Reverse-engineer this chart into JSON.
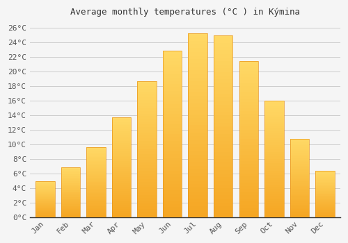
{
  "title": "Average monthly temperatures (°C ) in Kýmina",
  "months": [
    "Jan",
    "Feb",
    "Mar",
    "Apr",
    "May",
    "Jun",
    "Jul",
    "Aug",
    "Sep",
    "Oct",
    "Nov",
    "Dec"
  ],
  "values": [
    4.9,
    6.8,
    9.6,
    13.7,
    18.7,
    22.8,
    25.2,
    24.9,
    21.4,
    16.0,
    10.7,
    6.4
  ],
  "bar_color_bottom": "#F5A623",
  "bar_color_top": "#FFD966",
  "background_color": "#f5f5f5",
  "plot_bg_color": "#f5f5f5",
  "grid_color": "#cccccc",
  "ylim": [
    0,
    27
  ],
  "yticks": [
    0,
    2,
    4,
    6,
    8,
    10,
    12,
    14,
    16,
    18,
    20,
    22,
    24,
    26
  ],
  "title_fontsize": 9,
  "tick_fontsize": 8,
  "bar_width": 0.75,
  "spine_color": "#333333",
  "tick_color": "#555555"
}
